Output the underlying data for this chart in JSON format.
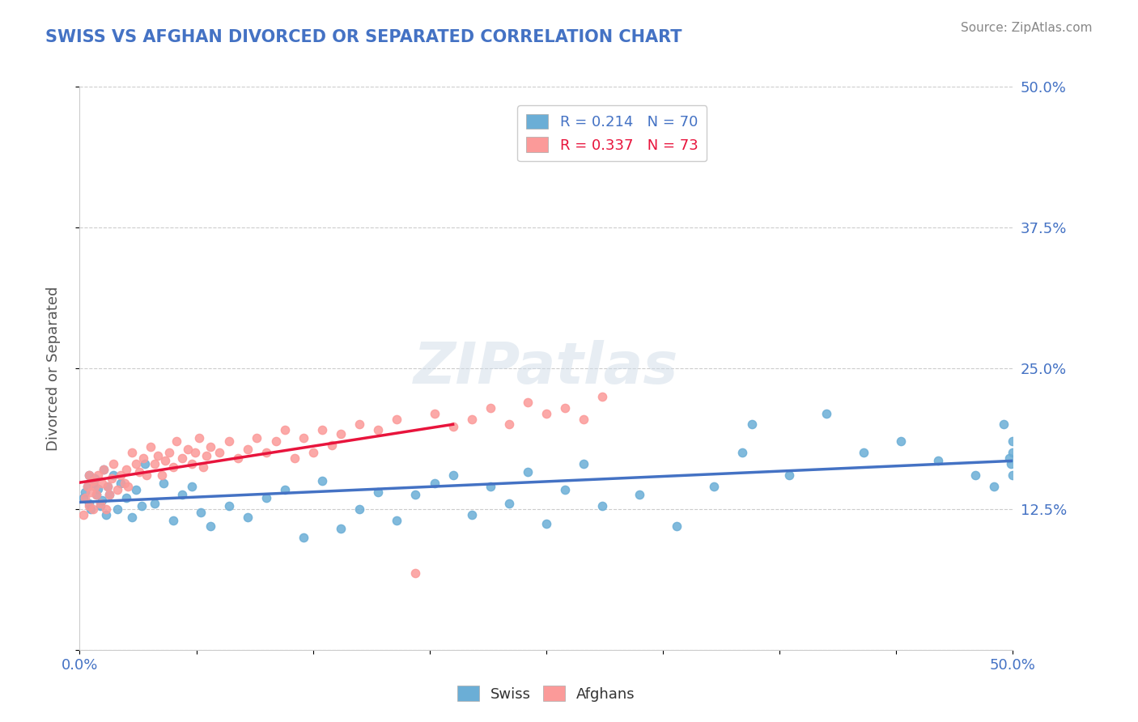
{
  "title": "SWISS VS AFGHAN DIVORCED OR SEPARATED CORRELATION CHART",
  "source": "Source: ZipAtlas.com",
  "xlabel": "",
  "ylabel": "Divorced or Separated",
  "xlim": [
    0.0,
    0.5
  ],
  "ylim": [
    0.0,
    0.5
  ],
  "xticks": [
    0.0,
    0.0625,
    0.125,
    0.1875,
    0.25,
    0.3125,
    0.375,
    0.4375,
    0.5
  ],
  "xtick_labels": [
    "0.0%",
    "",
    "",
    "",
    "",
    "",
    "",
    "",
    "50.0%"
  ],
  "yticks": [
    0.0,
    0.125,
    0.25,
    0.375,
    0.5
  ],
  "ytick_labels": [
    "",
    "12.5%",
    "25.0%",
    "37.5%",
    "50.0%"
  ],
  "swiss_color": "#6baed6",
  "afghan_color": "#fb9a99",
  "swiss_R": 0.214,
  "swiss_N": 70,
  "afghan_R": 0.337,
  "afghan_N": 73,
  "swiss_x": [
    0.002,
    0.003,
    0.004,
    0.005,
    0.005,
    0.006,
    0.007,
    0.008,
    0.009,
    0.01,
    0.011,
    0.012,
    0.013,
    0.014,
    0.015,
    0.016,
    0.018,
    0.02,
    0.022,
    0.025,
    0.028,
    0.03,
    0.033,
    0.035,
    0.04,
    0.045,
    0.05,
    0.055,
    0.06,
    0.065,
    0.07,
    0.08,
    0.09,
    0.1,
    0.11,
    0.12,
    0.13,
    0.14,
    0.15,
    0.16,
    0.17,
    0.18,
    0.19,
    0.2,
    0.21,
    0.22,
    0.23,
    0.24,
    0.25,
    0.26,
    0.27,
    0.28,
    0.3,
    0.32,
    0.34,
    0.355,
    0.36,
    0.38,
    0.4,
    0.42,
    0.44,
    0.46,
    0.48,
    0.49,
    0.495,
    0.498,
    0.499,
    0.5,
    0.5,
    0.5
  ],
  "swiss_y": [
    0.135,
    0.14,
    0.145,
    0.13,
    0.155,
    0.125,
    0.148,
    0.152,
    0.138,
    0.143,
    0.128,
    0.133,
    0.16,
    0.12,
    0.145,
    0.138,
    0.155,
    0.125,
    0.148,
    0.135,
    0.118,
    0.142,
    0.128,
    0.165,
    0.13,
    0.148,
    0.115,
    0.138,
    0.145,
    0.122,
    0.11,
    0.128,
    0.118,
    0.135,
    0.142,
    0.1,
    0.15,
    0.108,
    0.125,
    0.14,
    0.115,
    0.138,
    0.148,
    0.155,
    0.12,
    0.145,
    0.13,
    0.158,
    0.112,
    0.142,
    0.165,
    0.128,
    0.138,
    0.11,
    0.145,
    0.175,
    0.2,
    0.155,
    0.21,
    0.175,
    0.185,
    0.168,
    0.155,
    0.145,
    0.2,
    0.17,
    0.165,
    0.155,
    0.175,
    0.185
  ],
  "afghan_x": [
    0.002,
    0.003,
    0.004,
    0.005,
    0.005,
    0.006,
    0.007,
    0.007,
    0.008,
    0.009,
    0.01,
    0.011,
    0.012,
    0.013,
    0.014,
    0.015,
    0.016,
    0.017,
    0.018,
    0.02,
    0.022,
    0.024,
    0.025,
    0.026,
    0.028,
    0.03,
    0.032,
    0.034,
    0.036,
    0.038,
    0.04,
    0.042,
    0.044,
    0.046,
    0.048,
    0.05,
    0.052,
    0.055,
    0.058,
    0.06,
    0.062,
    0.064,
    0.066,
    0.068,
    0.07,
    0.075,
    0.08,
    0.085,
    0.09,
    0.095,
    0.1,
    0.105,
    0.11,
    0.115,
    0.12,
    0.125,
    0.13,
    0.135,
    0.14,
    0.15,
    0.16,
    0.17,
    0.18,
    0.19,
    0.2,
    0.21,
    0.22,
    0.23,
    0.24,
    0.25,
    0.26,
    0.27,
    0.28
  ],
  "afghan_y": [
    0.12,
    0.135,
    0.145,
    0.128,
    0.155,
    0.14,
    0.15,
    0.125,
    0.145,
    0.138,
    0.155,
    0.13,
    0.148,
    0.16,
    0.125,
    0.145,
    0.138,
    0.152,
    0.165,
    0.142,
    0.155,
    0.148,
    0.16,
    0.145,
    0.175,
    0.165,
    0.158,
    0.17,
    0.155,
    0.18,
    0.165,
    0.172,
    0.155,
    0.168,
    0.175,
    0.162,
    0.185,
    0.17,
    0.178,
    0.165,
    0.175,
    0.188,
    0.162,
    0.172,
    0.18,
    0.175,
    0.185,
    0.17,
    0.178,
    0.188,
    0.175,
    0.185,
    0.195,
    0.17,
    0.188,
    0.175,
    0.195,
    0.182,
    0.192,
    0.2,
    0.195,
    0.205,
    0.068,
    0.21,
    0.198,
    0.205,
    0.215,
    0.2,
    0.22,
    0.21,
    0.215,
    0.205,
    0.225
  ],
  "grid_color": "#cccccc",
  "background_color": "#ffffff",
  "trend_swiss_color": "#4472c4",
  "trend_afghan_color": "#e8143c",
  "watermark": "ZIPatlas",
  "figsize": [
    14.06,
    8.92
  ],
  "dpi": 100
}
